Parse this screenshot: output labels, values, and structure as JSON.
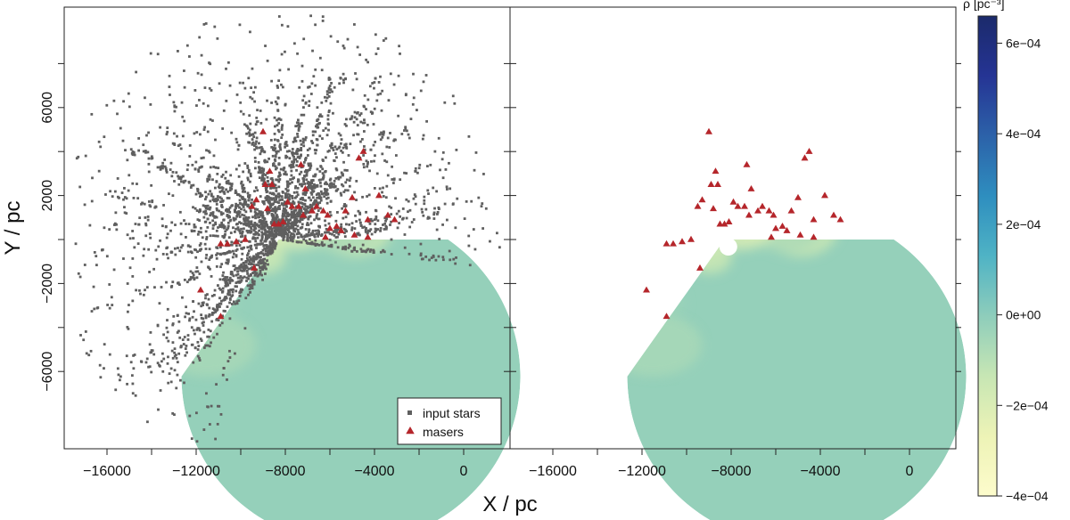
{
  "chart_data": [
    {
      "type": "scatter",
      "panel": "left",
      "xlabel": "X / pc",
      "ylabel": "Y / pc",
      "xlim": [
        -18000,
        2000
      ],
      "ylim": [
        -9500,
        10000
      ],
      "xticks": [
        -16000,
        -12000,
        -8000,
        -4000,
        0
      ],
      "xtick_labels": [
        "−16000",
        "−12000",
        "−8000",
        "−4000",
        "0"
      ],
      "yticks": [
        -6000,
        -2000,
        2000,
        6000
      ],
      "ytick_labels": [
        "−6000",
        "−2000",
        "2000",
        "6000"
      ],
      "minor_yticks": [
        -4000,
        0,
        4000,
        8000
      ],
      "sun_position": [
        -8300,
        0
      ],
      "density_map_extent": {
        "radius_pc": 7600,
        "angle_from_deg": 0,
        "angle_to_deg": 235
      },
      "legend": {
        "placement": "bottom-right",
        "entries": [
          {
            "label": "input stars",
            "marker": "square",
            "color": "#5f5f5f"
          },
          {
            "label": "masers",
            "marker": "triangle",
            "color": "#b5262b"
          }
        ]
      },
      "series": [
        {
          "name": "masers",
          "marker": "triangle",
          "color": "#b5262b",
          "points": [
            [
              -9000,
              4900
            ],
            [
              -8700,
              3100
            ],
            [
              -8900,
              2500
            ],
            [
              -8600,
              2500
            ],
            [
              -9300,
              1800
            ],
            [
              -9500,
              1500
            ],
            [
              -8500,
              700
            ],
            [
              -8300,
              700
            ],
            [
              -8100,
              800
            ],
            [
              -7900,
              1700
            ],
            [
              -7700,
              1500
            ],
            [
              -7400,
              1500
            ],
            [
              -7300,
              3400
            ],
            [
              -7100,
              2300
            ],
            [
              -6800,
              1300
            ],
            [
              -6600,
              1500
            ],
            [
              -6300,
              1300
            ],
            [
              -6100,
              1100
            ],
            [
              -6000,
              500
            ],
            [
              -5700,
              600
            ],
            [
              -5500,
              400
            ],
            [
              -5300,
              1300
            ],
            [
              -5000,
              1900
            ],
            [
              -4700,
              3700
            ],
            [
              -4500,
              4000
            ],
            [
              -3800,
              2000
            ],
            [
              -3400,
              1100
            ],
            [
              -4300,
              900
            ],
            [
              -3100,
              900
            ],
            [
              -4900,
              200
            ],
            [
              -4300,
              100
            ],
            [
              -6200,
              100
            ],
            [
              -7200,
              1100
            ],
            [
              -9800,
              0
            ],
            [
              -10200,
              -100
            ],
            [
              -10600,
              -200
            ],
            [
              -10900,
              -200
            ],
            [
              -9400,
              -1300
            ],
            [
              -11800,
              -2300
            ],
            [
              -10900,
              -3500
            ],
            [
              -8800,
              1400
            ]
          ]
        },
        {
          "name": "input stars",
          "marker": "square",
          "color": "#5f5f5f",
          "count_drawn": "generated"
        }
      ]
    },
    {
      "type": "heatmap",
      "panel": "right",
      "xlabel": "X / pc",
      "xlim": [
        -18000,
        2000
      ],
      "ylim": [
        -9500,
        10000
      ],
      "xticks": [
        -16000,
        -12000,
        -8000,
        -4000,
        0
      ],
      "xtick_labels": [
        "−16000",
        "−12000",
        "−8000",
        "−4000",
        "0"
      ],
      "minor_yticks": [
        -6000,
        -4000,
        -2000,
        0,
        2000,
        4000,
        6000,
        8000
      ],
      "colorbar": {
        "label": "ρ [pc⁻³]",
        "range": [
          -0.0004,
          0.00066
        ],
        "ticks": [
          -0.0004,
          -0.0002,
          0,
          0.0002,
          0.0004,
          0.0006
        ],
        "tick_labels": [
          "−4e−04",
          "−2e−04",
          "0e+00",
          "2e−04",
          "4e−04",
          "6e−04"
        ],
        "colors": [
          "#fdfccc",
          "#edf3b6",
          "#c7e6b4",
          "#8ecdbb",
          "#4fb3c5",
          "#2e8ebf",
          "#2c62a9",
          "#253494",
          "#1b2a6b"
        ]
      },
      "density_map_extent": {
        "radius_pc": 7600,
        "inner_radius_pc": 400,
        "angle_from_deg": 0,
        "angle_to_deg": 235
      },
      "series": [
        {
          "name": "masers",
          "marker": "triangle",
          "color": "#b5262b",
          "points": [
            [
              -9000,
              4900
            ],
            [
              -8700,
              3100
            ],
            [
              -8900,
              2500
            ],
            [
              -8600,
              2500
            ],
            [
              -9300,
              1800
            ],
            [
              -9500,
              1500
            ],
            [
              -8500,
              700
            ],
            [
              -8300,
              700
            ],
            [
              -8100,
              800
            ],
            [
              -7900,
              1700
            ],
            [
              -7700,
              1500
            ],
            [
              -7400,
              1500
            ],
            [
              -7300,
              3400
            ],
            [
              -7100,
              2300
            ],
            [
              -6800,
              1300
            ],
            [
              -6600,
              1500
            ],
            [
              -6300,
              1300
            ],
            [
              -6100,
              1100
            ],
            [
              -6000,
              500
            ],
            [
              -5700,
              600
            ],
            [
              -5500,
              400
            ],
            [
              -5300,
              1300
            ],
            [
              -5000,
              1900
            ],
            [
              -4700,
              3700
            ],
            [
              -4500,
              4000
            ],
            [
              -3800,
              2000
            ],
            [
              -3400,
              1100
            ],
            [
              -4300,
              900
            ],
            [
              -3100,
              900
            ],
            [
              -4900,
              200
            ],
            [
              -4300,
              100
            ],
            [
              -6200,
              100
            ],
            [
              -7200,
              1100
            ],
            [
              -9800,
              0
            ],
            [
              -10200,
              -100
            ],
            [
              -10600,
              -200
            ],
            [
              -10900,
              -200
            ],
            [
              -9400,
              -1300
            ],
            [
              -11800,
              -2300
            ],
            [
              -10900,
              -3500
            ],
            [
              -8800,
              1400
            ]
          ]
        }
      ]
    }
  ]
}
